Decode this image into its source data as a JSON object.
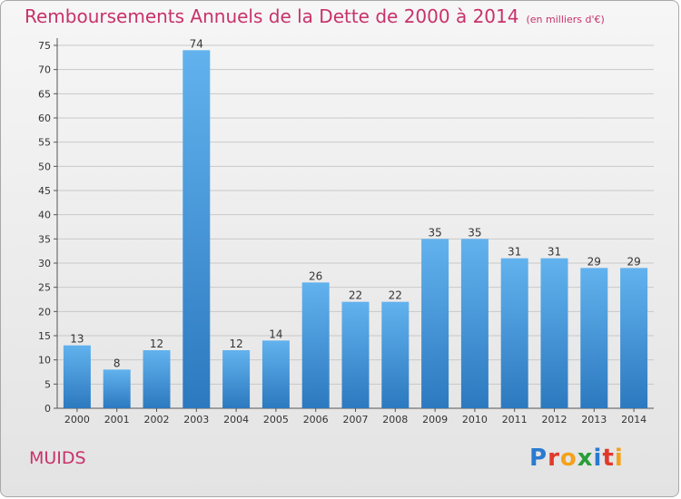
{
  "title": "Remboursements Annuels de la Dette de 2000 à 2014",
  "unit": "(en milliers d'€)",
  "commune": "MUIDS",
  "logo": {
    "letters": [
      "P",
      "r",
      "o",
      "x",
      "i",
      "t",
      "i"
    ],
    "colors": [
      "#2a7ad0",
      "#e0392b",
      "#f3a21b",
      "#2a9d3a",
      "#2a7ad0",
      "#e0392b",
      "#f3a21b"
    ]
  },
  "colors": {
    "bar_top": "#62b2ee",
    "bar_bottom": "#2c79bf",
    "title": "#c8326a",
    "grid": "#c9c9c9"
  },
  "chart_data": {
    "type": "bar",
    "title": "Remboursements Annuels de la Dette de 2000 à 2014",
    "xlabel": "",
    "ylabel": "",
    "categories": [
      "2000",
      "2001",
      "2002",
      "2003",
      "2004",
      "2005",
      "2006",
      "2007",
      "2008",
      "2009",
      "2010",
      "2011",
      "2012",
      "2013",
      "2014"
    ],
    "values": [
      13,
      8,
      12,
      74,
      12,
      14,
      26,
      22,
      22,
      35,
      35,
      31,
      31,
      29,
      29
    ],
    "ylim": [
      0,
      75
    ],
    "yticks": [
      0,
      5,
      10,
      15,
      20,
      25,
      30,
      35,
      40,
      45,
      50,
      55,
      60,
      65,
      70,
      75
    ],
    "grid": true,
    "legend": "none"
  }
}
